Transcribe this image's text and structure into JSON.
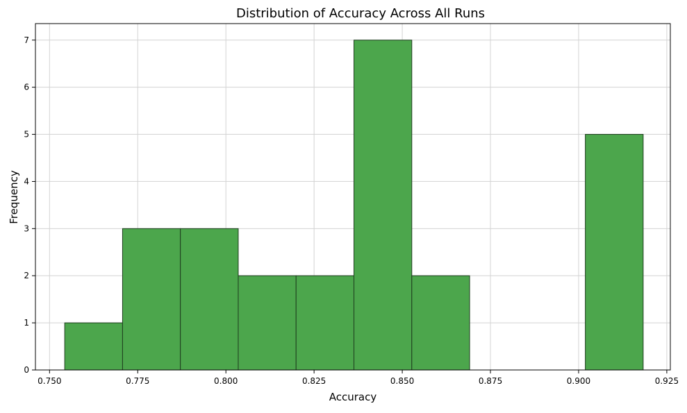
{
  "chart_data": {
    "type": "histogram",
    "title": "Distribution of Accuracy Across All Runs",
    "xlabel": "Accuracy",
    "ylabel": "Frequency",
    "xlim": [
      0.746,
      0.926
    ],
    "ylim": [
      0,
      7.35
    ],
    "grid": true,
    "bin_edges": [
      0.7543,
      0.7707,
      0.7871,
      0.8035,
      0.8199,
      0.8363,
      0.8527,
      0.8691,
      0.8855,
      0.9019,
      0.9183
    ],
    "counts": [
      1,
      3,
      3,
      2,
      2,
      7,
      2,
      0,
      0,
      5
    ],
    "x_ticks": [
      0.75,
      0.775,
      0.8,
      0.825,
      0.85,
      0.875,
      0.9,
      0.925
    ],
    "x_tick_labels": [
      "0.750",
      "0.775",
      "0.800",
      "0.825",
      "0.850",
      "0.875",
      "0.900",
      "0.925"
    ],
    "y_ticks": [
      0,
      1,
      2,
      3,
      4,
      5,
      6,
      7
    ],
    "y_tick_labels": [
      "0",
      "1",
      "2",
      "3",
      "4",
      "5",
      "6",
      "7"
    ],
    "bar_color": "#4ca64c",
    "bar_edge_color": "#1f3d1f",
    "grid_color": "#d3d3d3"
  }
}
